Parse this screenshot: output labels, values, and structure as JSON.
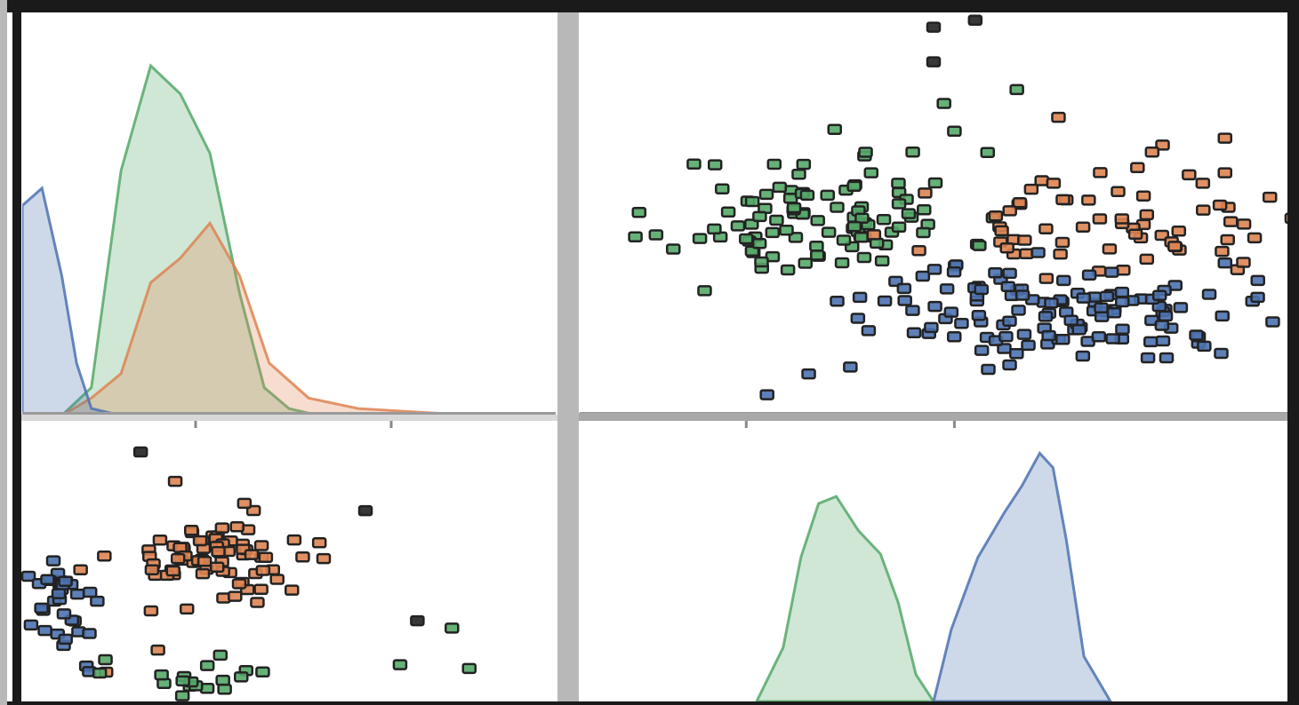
{
  "figure": {
    "frame_color": "#1a1a1a",
    "gutter_color": "#b8b8b8",
    "background": "#ffffff"
  },
  "colors": {
    "blue": "#4c72b0",
    "orange": "#dd8452",
    "green": "#55a868",
    "marker_edge": "#222222"
  },
  "chart_data": [
    {
      "id": "top-left",
      "type": "area",
      "kind": "kde",
      "xlabel": "",
      "ylabel": "",
      "series": [
        {
          "color": "#55a868",
          "x": [
            -1.6,
            -1.3,
            -1.0,
            -0.7,
            -0.4,
            -0.1,
            0.2,
            0.45,
            0.7,
            1.0,
            1.4
          ],
          "y": [
            0.0,
            0.08,
            0.7,
            1.0,
            0.92,
            0.75,
            0.35,
            0.08,
            0.02,
            0.0,
            0.0
          ]
        },
        {
          "color": "#dd8452",
          "x": [
            -1.6,
            -1.3,
            -1.0,
            -0.7,
            -0.4,
            -0.1,
            0.2,
            0.5,
            0.9,
            1.4,
            2.0,
            2.6,
            3.0
          ],
          "y": [
            0.0,
            0.05,
            0.12,
            0.38,
            0.45,
            0.55,
            0.4,
            0.15,
            0.05,
            0.02,
            0.01,
            0.0,
            0.0
          ]
        },
        {
          "color": "#4c72b0",
          "x": [
            -2.0,
            -1.8,
            -1.6,
            -1.45,
            -1.3,
            -1.0
          ],
          "y": [
            0.6,
            0.65,
            0.4,
            0.15,
            0.02,
            0.0
          ]
        }
      ],
      "xlim": [
        -2.0,
        3.4
      ],
      "ylim": [
        0.0,
        1.15
      ]
    },
    {
      "id": "top-right",
      "type": "scatter",
      "xlabel": "",
      "ylabel": "",
      "series": [
        {
          "color": "#55a868",
          "cx": [
            0.35,
            6.0
          ],
          "sx": [
            0.35,
            0.45
          ],
          "n": 95,
          "seed": 11,
          "extra": [
            [
              0.8,
              6.9
            ],
            [
              1.0,
              7.2
            ],
            [
              1.3,
              7.8
            ],
            [
              0.6,
              6.6
            ],
            [
              0.2,
              5.2
            ],
            [
              -0.2,
              4.9
            ],
            [
              0.95,
              7.6
            ]
          ]
        },
        {
          "color": "#dd8452",
          "cx": [
            1.75,
            5.8
          ],
          "sx": [
            0.42,
            0.35
          ],
          "n": 65,
          "seed": 23,
          "extra": [
            [
              2.0,
              7.0
            ],
            [
              2.3,
              7.1
            ],
            [
              1.5,
              7.4
            ],
            [
              2.3,
              6.6
            ],
            [
              1.95,
              6.9
            ]
          ]
        },
        {
          "color": "#4c72b0",
          "cx": [
            1.5,
            4.6
          ],
          "sx": [
            0.45,
            0.35
          ],
          "n": 120,
          "seed": 37,
          "extra": [
            [
              0.3,
              3.7
            ],
            [
              0.1,
              3.4
            ],
            [
              2.2,
              4.1
            ],
            [
              2.3,
              5.3
            ],
            [
              0.5,
              3.8
            ]
          ]
        },
        {
          "color": "#222222",
          "cx": [
            1.2,
            6.8
          ],
          "sx": [
            0.2,
            0.2
          ],
          "n": 0,
          "seed": 5,
          "extra": [
            [
              0.9,
              8.7
            ],
            [
              0.9,
              8.2
            ],
            [
              1.1,
              8.8
            ]
          ]
        }
      ],
      "xlim": [
        -0.8,
        2.6
      ],
      "ylim": [
        3.1,
        8.9
      ],
      "xticks": [
        0.0,
        1.0
      ],
      "yticks": [
        4.0,
        5.0,
        6.0,
        7.0,
        8.0
      ]
    },
    {
      "id": "bottom-left",
      "type": "scatter",
      "xlabel": "",
      "ylabel": "",
      "series": [
        {
          "color": "#4c72b0",
          "cx": [
            4.55,
            -0.3
          ],
          "sx": [
            0.12,
            0.35
          ],
          "n": 35,
          "seed": 41,
          "extra": []
        },
        {
          "color": "#dd8452",
          "cx": [
            5.45,
            0.35
          ],
          "sx": [
            0.3,
            0.3
          ],
          "n": 75,
          "seed": 53,
          "extra": [
            [
              5.1,
              -0.9
            ],
            [
              4.8,
              -1.2
            ],
            [
              5.6,
              1.1
            ],
            [
              5.2,
              1.4
            ]
          ]
        },
        {
          "color": "#55a868",
          "cx": [
            5.2,
            -1.25
          ],
          "sx": [
            0.3,
            0.15
          ],
          "n": 18,
          "seed": 61,
          "extra": [
            [
              6.5,
              -1.1
            ],
            [
              6.9,
              -1.15
            ],
            [
              6.8,
              -0.6
            ]
          ]
        },
        {
          "color": "#222222",
          "cx": [
            5.0,
            0.0
          ],
          "sx": [
            0.1,
            0.1
          ],
          "n": 0,
          "seed": 3,
          "extra": [
            [
              5.0,
              1.8
            ],
            [
              6.3,
              1.0
            ],
            [
              6.6,
              -0.5
            ]
          ]
        }
      ],
      "xlim": [
        4.3,
        7.4
      ],
      "ylim": [
        -1.6,
        2.2
      ]
    },
    {
      "id": "bottom-right",
      "type": "area",
      "kind": "kde",
      "xlabel": "",
      "ylabel": "",
      "series": [
        {
          "color": "#55a868",
          "x": [
            -1.5,
            -1.2,
            -1.0,
            -0.8,
            -0.6,
            -0.35,
            -0.1,
            0.1,
            0.3,
            0.5
          ],
          "y": [
            0.0,
            0.3,
            0.8,
            1.1,
            1.14,
            0.95,
            0.82,
            0.55,
            0.15,
            0.0
          ]
        },
        {
          "color": "#4c72b0",
          "x": [
            0.5,
            0.7,
            1.0,
            1.3,
            1.5,
            1.7,
            1.85,
            2.0,
            2.2,
            2.5
          ],
          "y": [
            0.0,
            0.4,
            0.8,
            1.05,
            1.2,
            1.38,
            1.3,
            0.9,
            0.25,
            0.0
          ]
        }
      ],
      "xlim": [
        -3.5,
        4.5
      ],
      "ylim": [
        0.0,
        1.55
      ],
      "yticks": [
        0.4,
        0.8
      ]
    }
  ]
}
